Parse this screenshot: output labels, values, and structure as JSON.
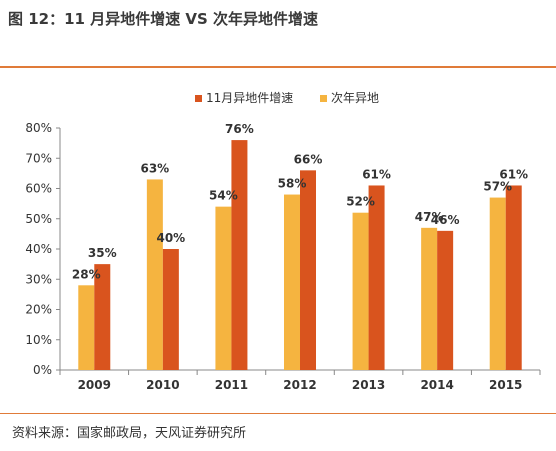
{
  "header": {
    "title": "图 12：11 月异地件增速 VS 次年异地件增速"
  },
  "footer": {
    "source": "资料来源：国家邮政局，天风证券研究所"
  },
  "colors": {
    "accent_rule": "#e07b39"
  },
  "chart_data": {
    "type": "bar",
    "categories": [
      "2009",
      "2010",
      "2011",
      "2012",
      "2013",
      "2014",
      "2015"
    ],
    "series": [
      {
        "name": "次年异地",
        "color": "#f5b440",
        "values": [
          28,
          63,
          54,
          58,
          52,
          47,
          57
        ]
      },
      {
        "name": "11月异地件增速",
        "color": "#d9541e",
        "values": [
          35,
          40,
          76,
          66,
          61,
          46,
          61
        ]
      }
    ],
    "legend_order": [
      1,
      0
    ],
    "legend_position": "top-right",
    "ylim": [
      0,
      80
    ],
    "yticks": [
      0,
      10,
      20,
      30,
      40,
      50,
      60,
      70,
      80
    ],
    "ytick_suffix": "%",
    "data_label_suffix": "%",
    "grid": false
  }
}
